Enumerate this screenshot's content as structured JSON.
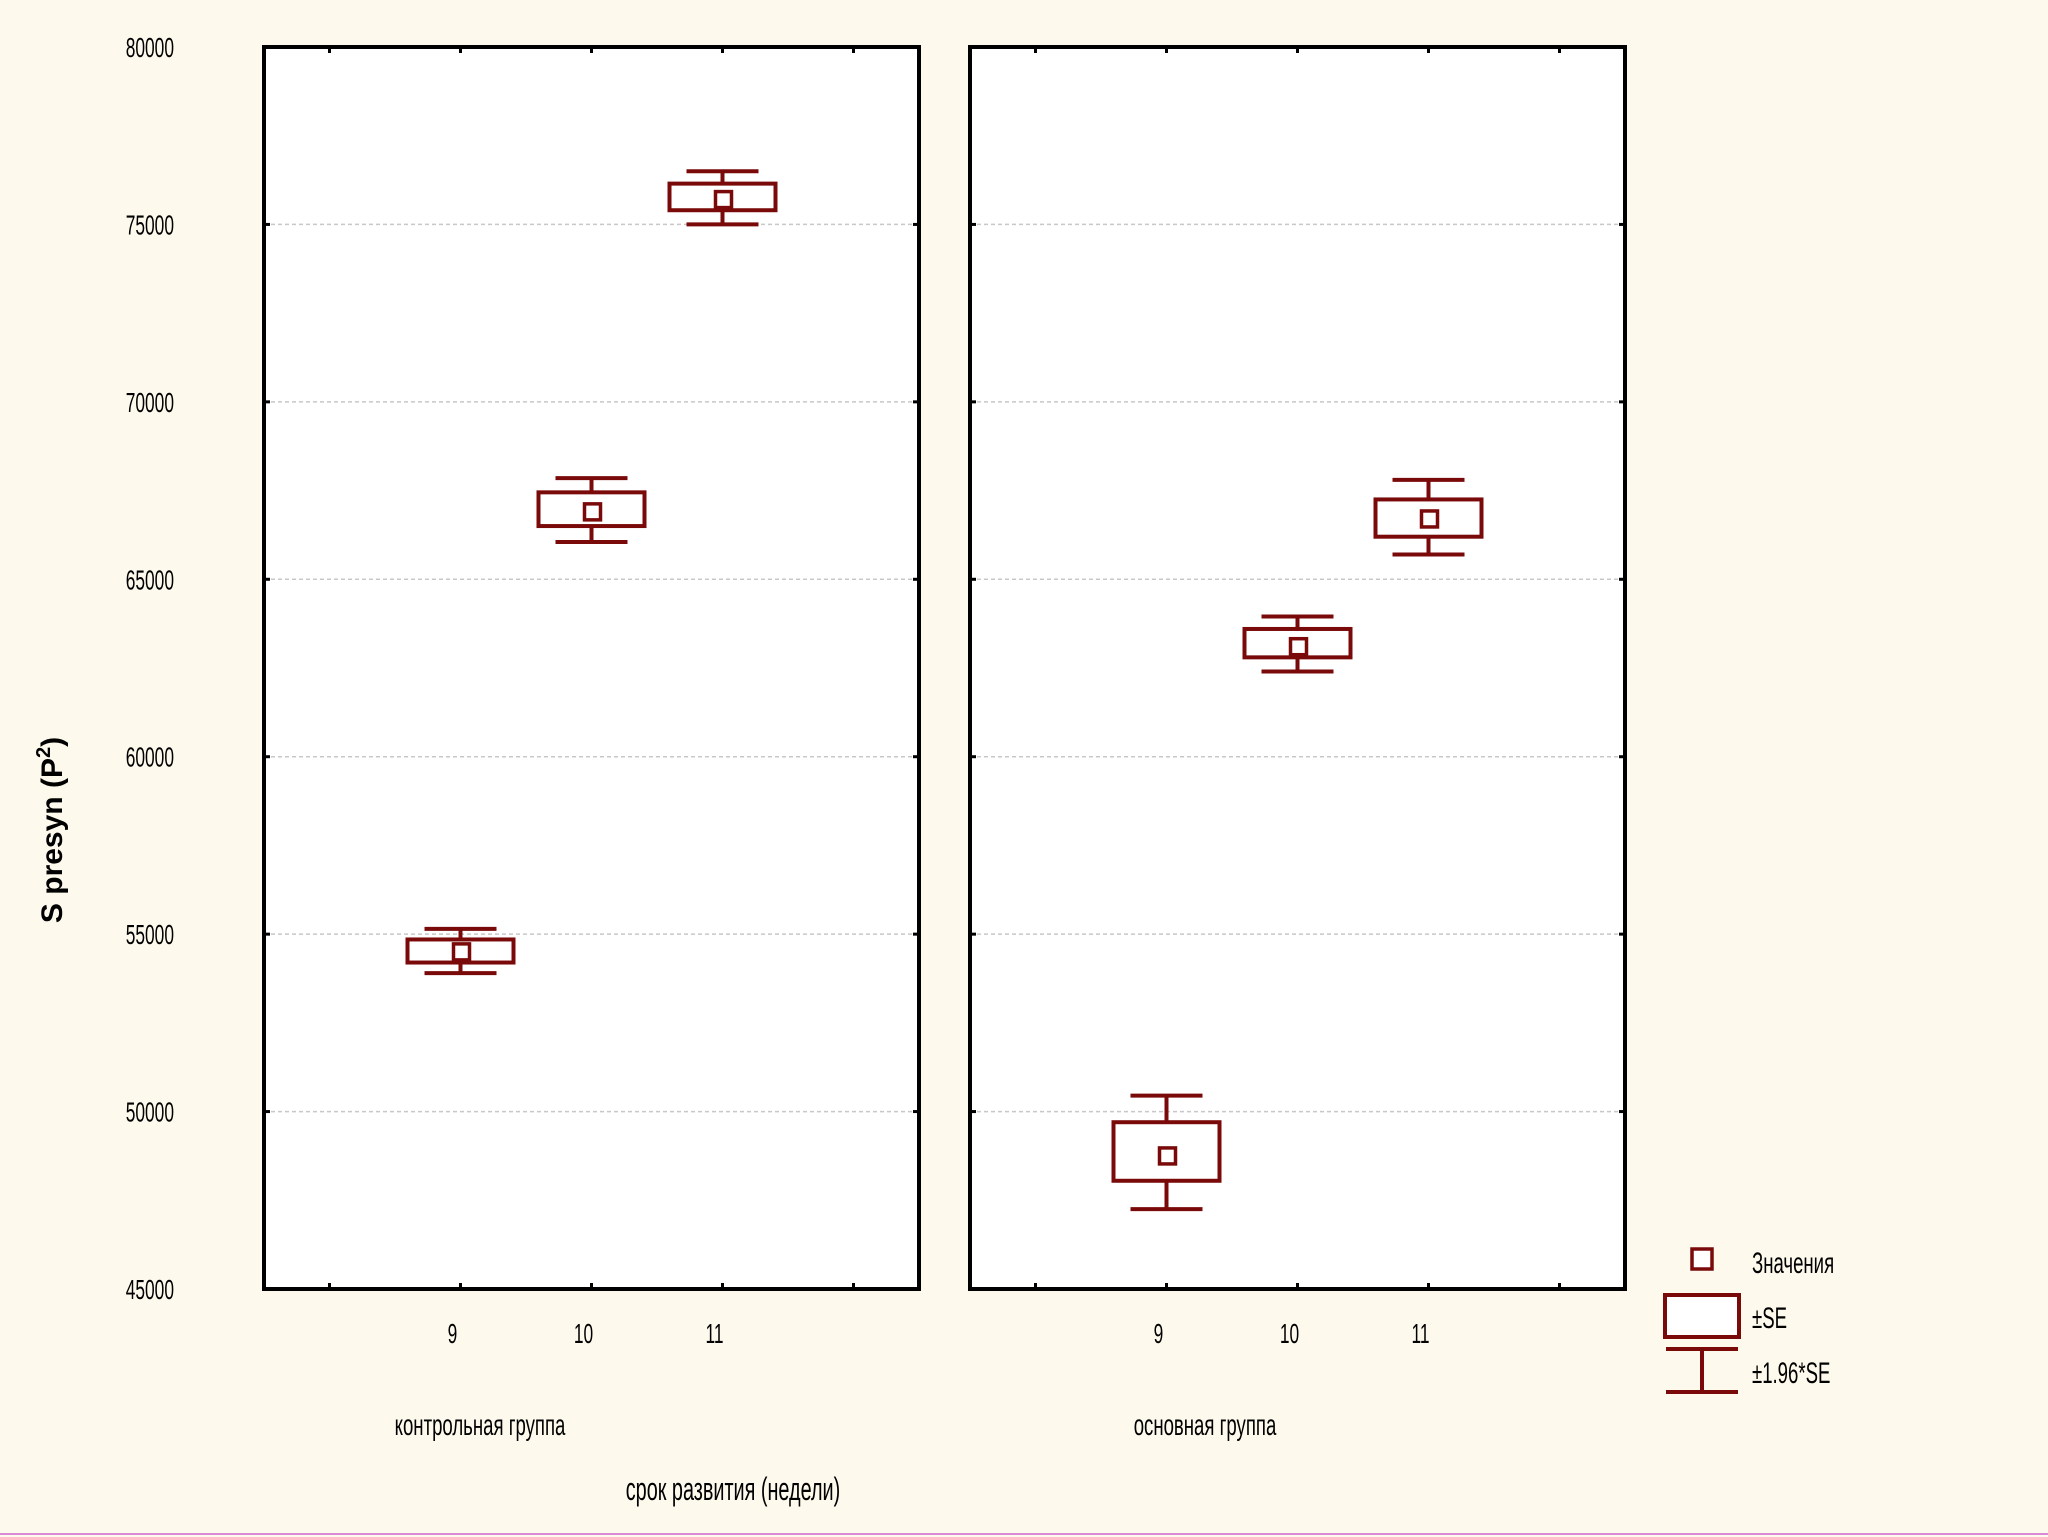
{
  "colors": {
    "background": "#fdf9ec",
    "plot_area": "#ffffff",
    "series": "#7a0a0a",
    "axis": "#000000",
    "grid": "#c8c8c8"
  },
  "chart_data": {
    "type": "box",
    "ylabel": "S presyn  (P",
    "ylabel_sup": "2",
    "ylabel_end": ")",
    "xlabel": "срок развития (недели)",
    "ylim": [
      45000,
      80000
    ],
    "yticks": [
      "80000",
      "75000",
      "70000",
      "65000",
      "60000",
      "55000",
      "50000",
      "45000"
    ],
    "grid": true,
    "legend_position": "bottom-right",
    "legend": [
      {
        "label": "Значения",
        "marker": "square"
      },
      {
        "label": "±SE",
        "marker": "box"
      },
      {
        "label": "±1.96*SE",
        "marker": "whisker"
      }
    ],
    "panels": [
      {
        "name": "контрольная группа",
        "categories": [
          "9",
          "10",
          "11"
        ],
        "points": [
          {
            "x": "9",
            "mean": 54500,
            "se_low": 54200,
            "se_high": 54850,
            "ci_low": 53900,
            "ci_high": 55150
          },
          {
            "x": "10",
            "mean": 66900,
            "se_low": 66500,
            "se_high": 67450,
            "ci_low": 66050,
            "ci_high": 67850
          },
          {
            "x": "11",
            "mean": 75700,
            "se_low": 75400,
            "se_high": 76150,
            "ci_low": 75000,
            "ci_high": 76500
          }
        ]
      },
      {
        "name": "основная группа",
        "categories": [
          "9",
          "10",
          "11"
        ],
        "points": [
          {
            "x": "9",
            "mean": 48750,
            "se_low": 48050,
            "se_high": 49700,
            "ci_low": 47250,
            "ci_high": 50450
          },
          {
            "x": "10",
            "mean": 63100,
            "se_low": 62800,
            "se_high": 63600,
            "ci_low": 62400,
            "ci_high": 63950
          },
          {
            "x": "11",
            "mean": 66700,
            "se_low": 66200,
            "se_high": 67250,
            "ci_low": 65700,
            "ci_high": 67800
          }
        ]
      }
    ]
  }
}
